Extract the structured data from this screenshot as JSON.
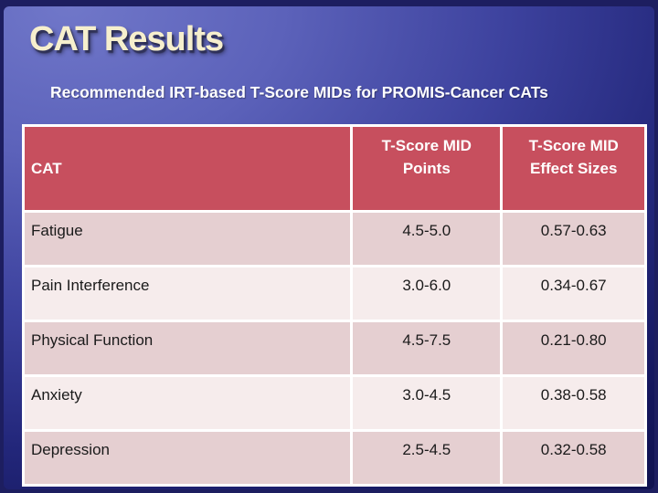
{
  "slide": {
    "title": "CAT Results",
    "subtitle": "Recommended IRT-based T-Score MIDs for PROMIS-Cancer CATs"
  },
  "table": {
    "header": {
      "cat": "CAT",
      "points": "T-Score MID\nPoints",
      "effect_sizes": "T-Score MID\nEffect Sizes"
    },
    "rows": [
      {
        "cat": "Fatigue",
        "points": "4.5-5.0",
        "effect_sizes": "0.57-0.63"
      },
      {
        "cat": "Pain Interference",
        "points": "3.0-6.0",
        "effect_sizes": "0.34-0.67"
      },
      {
        "cat": "Physical Function",
        "points": "4.5-7.5",
        "effect_sizes": "0.21-0.80"
      },
      {
        "cat": "Anxiety",
        "points": "3.0-4.5",
        "effect_sizes": "0.38-0.58"
      },
      {
        "cat": "Depression",
        "points": "2.5-4.5",
        "effect_sizes": "0.32-0.58"
      }
    ]
  },
  "colors": {
    "header_bg": "#C74F5E",
    "row_dark": "#E5CFD1",
    "row_light": "#F6ECEC",
    "table_border": "#FFFFFF",
    "title_text": "#F6EFCD",
    "subtitle_text": "#FFFFFF",
    "body_text": "#1A1A1A",
    "bg_top_left": "#7077C9",
    "bg_bottom_right": "#0E1048",
    "frame_edge": "#1D1E60"
  }
}
